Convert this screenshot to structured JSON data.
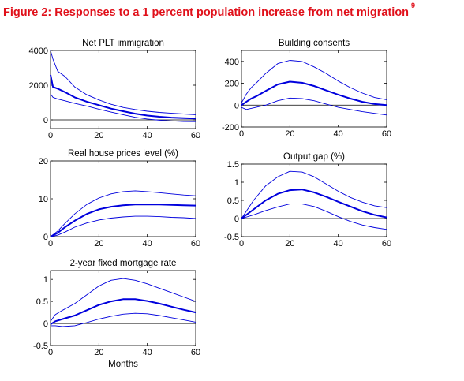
{
  "figure": {
    "title": "Figure 2: Responses to a 1 percent population increase from net migration",
    "footnote_marker": "9",
    "title_color": "#e0101a",
    "line_color": "#0000dd"
  },
  "chart_data": [
    {
      "type": "line",
      "title": "Net PLT immigration",
      "xlabel": "",
      "ylabel": "",
      "xlim": [
        0,
        60
      ],
      "ylim": [
        -500,
        4000
      ],
      "xticks": [
        0,
        20,
        40,
        60
      ],
      "yticks": [
        0,
        2000,
        4000
      ],
      "zero_line": true,
      "x": [
        0,
        1,
        3,
        6,
        10,
        15,
        20,
        25,
        30,
        35,
        40,
        45,
        50,
        55,
        60
      ],
      "series": [
        {
          "role": "upper",
          "values": [
            4000,
            3500,
            2800,
            2500,
            1900,
            1450,
            1150,
            900,
            720,
            600,
            500,
            430,
            380,
            340,
            300
          ]
        },
        {
          "role": "median",
          "values": [
            2600,
            1900,
            1800,
            1600,
            1300,
            1050,
            850,
            650,
            500,
            360,
            250,
            180,
            130,
            100,
            80
          ]
        },
        {
          "role": "lower",
          "values": [
            1500,
            1300,
            1200,
            1100,
            950,
            800,
            620,
            450,
            300,
            150,
            50,
            -20,
            -60,
            -90,
            -100
          ]
        }
      ]
    },
    {
      "type": "line",
      "title": "Building consents",
      "xlabel": "",
      "ylabel": "",
      "xlim": [
        0,
        60
      ],
      "ylim": [
        -200,
        500
      ],
      "xticks": [
        0,
        20,
        40,
        60
      ],
      "yticks": [
        -200,
        0,
        200,
        400
      ],
      "zero_line": true,
      "x": [
        0,
        2,
        4,
        6,
        10,
        15,
        20,
        25,
        30,
        35,
        40,
        45,
        50,
        55,
        60
      ],
      "series": [
        {
          "role": "upper",
          "values": [
            20,
            100,
            160,
            200,
            290,
            380,
            410,
            400,
            350,
            290,
            220,
            160,
            110,
            70,
            50
          ]
        },
        {
          "role": "median",
          "values": [
            0,
            30,
            60,
            80,
            130,
            190,
            215,
            205,
            175,
            135,
            95,
            60,
            30,
            10,
            0
          ]
        },
        {
          "role": "lower",
          "values": [
            -20,
            -40,
            -30,
            -20,
            0,
            40,
            65,
            60,
            40,
            10,
            -20,
            -40,
            -60,
            -75,
            -90
          ]
        }
      ]
    },
    {
      "type": "line",
      "title": "Real house prices level (%)",
      "xlabel": "",
      "ylabel": "",
      "xlim": [
        0,
        60
      ],
      "ylim": [
        0,
        20
      ],
      "xticks": [
        0,
        20,
        40,
        60
      ],
      "yticks": [
        0,
        10,
        20
      ],
      "zero_line": false,
      "x": [
        0,
        3,
        6,
        10,
        15,
        20,
        25,
        30,
        35,
        40,
        45,
        50,
        55,
        60
      ],
      "series": [
        {
          "role": "upper",
          "values": [
            0,
            1.5,
            3.5,
            6,
            8.5,
            10.2,
            11.3,
            11.9,
            12.1,
            11.9,
            11.6,
            11.3,
            11,
            10.8
          ]
        },
        {
          "role": "median",
          "values": [
            0,
            1,
            2.5,
            4.2,
            6,
            7.2,
            7.9,
            8.3,
            8.5,
            8.5,
            8.5,
            8.4,
            8.3,
            8.2
          ]
        },
        {
          "role": "lower",
          "values": [
            0,
            0.4,
            1.2,
            2.5,
            3.6,
            4.4,
            4.9,
            5.2,
            5.4,
            5.4,
            5.3,
            5.1,
            5.0,
            4.8
          ]
        }
      ]
    },
    {
      "type": "line",
      "title": "Output gap (%)",
      "xlabel": "",
      "ylabel": "",
      "xlim": [
        0,
        60
      ],
      "ylim": [
        -0.5,
        1.5
      ],
      "xticks": [
        0,
        20,
        40,
        60
      ],
      "yticks": [
        -0.5,
        0,
        0.5,
        1,
        1.5
      ],
      "zero_line": true,
      "x": [
        0,
        5,
        10,
        15,
        20,
        25,
        30,
        35,
        40,
        45,
        50,
        55,
        60
      ],
      "series": [
        {
          "role": "upper",
          "values": [
            0,
            0.5,
            0.9,
            1.15,
            1.3,
            1.28,
            1.15,
            0.95,
            0.75,
            0.58,
            0.45,
            0.35,
            0.3
          ]
        },
        {
          "role": "median",
          "values": [
            0,
            0.25,
            0.5,
            0.68,
            0.78,
            0.8,
            0.72,
            0.6,
            0.46,
            0.33,
            0.2,
            0.1,
            0.03
          ]
        },
        {
          "role": "lower",
          "values": [
            0,
            0.1,
            0.22,
            0.32,
            0.4,
            0.4,
            0.33,
            0.2,
            0.05,
            -0.08,
            -0.18,
            -0.25,
            -0.3
          ]
        }
      ]
    },
    {
      "type": "line",
      "title": "2-year fixed mortgage rate",
      "xlabel": "Months",
      "ylabel": "",
      "xlim": [
        0,
        60
      ],
      "ylim": [
        -0.5,
        1.2
      ],
      "xticks": [
        0,
        20,
        40,
        60
      ],
      "yticks": [
        -0.5,
        0,
        0.5,
        1
      ],
      "zero_line": true,
      "x": [
        0,
        2,
        5,
        10,
        15,
        20,
        25,
        30,
        35,
        40,
        45,
        50,
        55,
        60
      ],
      "series": [
        {
          "role": "upper",
          "values": [
            0.05,
            0.2,
            0.3,
            0.45,
            0.65,
            0.85,
            0.98,
            1.02,
            0.98,
            0.9,
            0.8,
            0.7,
            0.6,
            0.5
          ]
        },
        {
          "role": "median",
          "values": [
            -0.02,
            0.05,
            0.1,
            0.18,
            0.3,
            0.42,
            0.5,
            0.55,
            0.55,
            0.51,
            0.45,
            0.38,
            0.31,
            0.25
          ]
        },
        {
          "role": "lower",
          "values": [
            -0.05,
            -0.05,
            -0.07,
            -0.05,
            0.02,
            0.1,
            0.16,
            0.21,
            0.23,
            0.22,
            0.18,
            0.13,
            0.08,
            0.03
          ]
        }
      ]
    }
  ]
}
